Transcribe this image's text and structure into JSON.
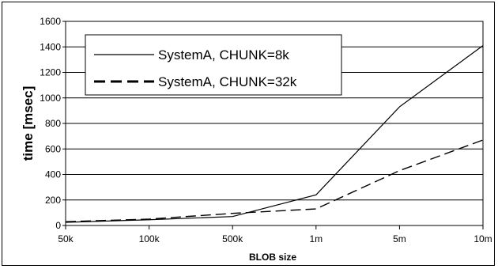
{
  "chart_data": {
    "type": "line",
    "categories": [
      "50k",
      "100k",
      "500k",
      "1m",
      "5m",
      "10m"
    ],
    "series": [
      {
        "name": "SystemA, CHUNK=8k",
        "values": [
          25,
          45,
          70,
          240,
          930,
          1410
        ],
        "style": "solid"
      },
      {
        "name": "SystemA, CHUNK=32k",
        "values": [
          30,
          50,
          95,
          130,
          430,
          670
        ],
        "style": "dashed"
      }
    ],
    "xlabel": "BLOB size",
    "ylabel": "time [msec]",
    "ylim": [
      0,
      1600
    ],
    "yticks": [
      0,
      200,
      400,
      600,
      800,
      1000,
      1200,
      1400,
      1600
    ],
    "grid": true,
    "legend": "top-left",
    "colors": {
      "line": "#000000",
      "grid": "#000000"
    }
  }
}
